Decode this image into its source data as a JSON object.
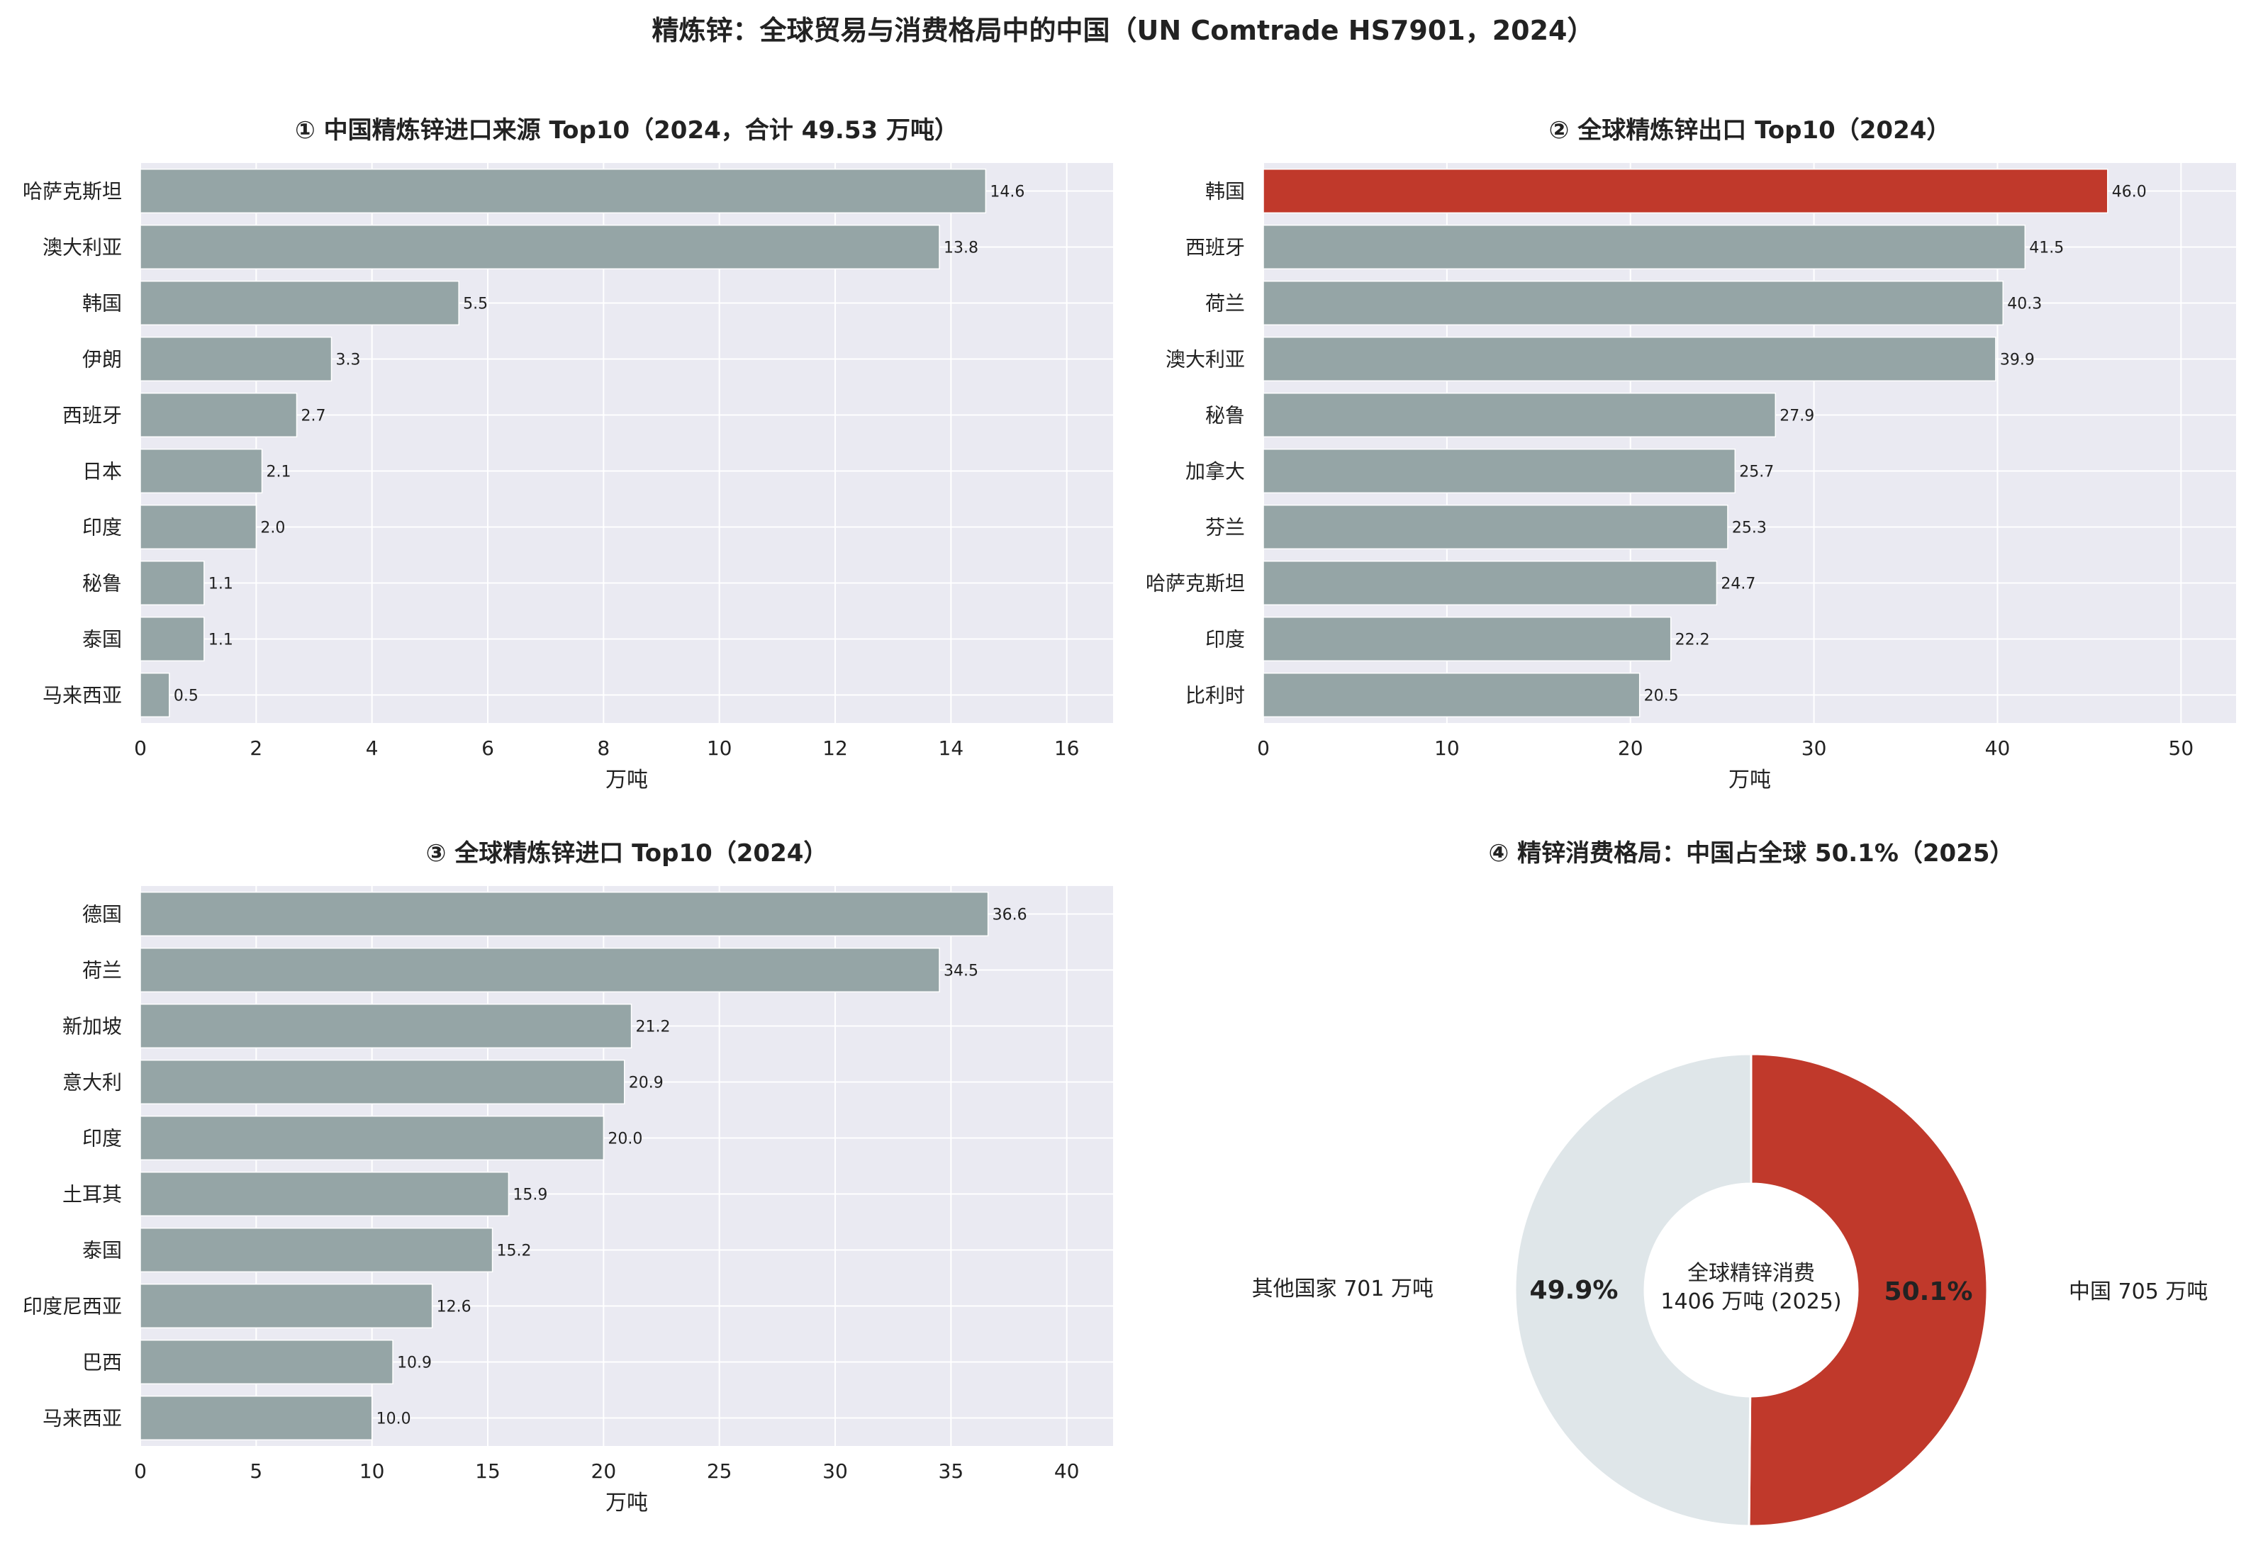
{
  "suptitle": "精炼锌：全球贸易与消费格局中的中国（UN Comtrade HS7901，2024）",
  "colors": {
    "bar": "#95a5a6",
    "highlight": "#c0392b",
    "plot_bg": "#eaeaf2",
    "grid": "#ffffff",
    "other_slice": "#dfe6e9"
  },
  "chart_data": [
    {
      "type": "bar",
      "orientation": "horizontal",
      "title": "① 中国精炼锌进口来源 Top10（2024，合计 49.53 万吨）",
      "xlabel": "万吨",
      "xlim": [
        0,
        16.8
      ],
      "xticks": [
        0,
        2,
        4,
        6,
        8,
        10,
        12,
        14,
        16
      ],
      "categories": [
        "哈萨克斯坦",
        "澳大利亚",
        "韩国",
        "伊朗",
        "西班牙",
        "日本",
        "印度",
        "秘鲁",
        "泰国",
        "马来西亚"
      ],
      "values": [
        14.6,
        13.8,
        5.5,
        3.3,
        2.7,
        2.1,
        2.0,
        1.1,
        1.1,
        0.5
      ],
      "labels": [
        "14.6",
        "13.8",
        "5.5",
        "3.3",
        "2.7",
        "2.1",
        "2.0",
        "1.1",
        "1.1",
        "0.5"
      ],
      "highlight": ""
    },
    {
      "type": "bar",
      "orientation": "horizontal",
      "title": "② 全球精炼锌出口 Top10（2024）",
      "xlabel": "万吨",
      "xlim": [
        0,
        53
      ],
      "xticks": [
        0,
        10,
        20,
        30,
        40,
        50
      ],
      "categories": [
        "韩国",
        "西班牙",
        "荷兰",
        "澳大利亚",
        "秘鲁",
        "加拿大",
        "芬兰",
        "哈萨克斯坦",
        "印度",
        "比利时"
      ],
      "values": [
        46.0,
        41.5,
        40.3,
        39.9,
        27.9,
        25.7,
        25.3,
        24.7,
        22.2,
        20.5
      ],
      "labels": [
        "46.0",
        "41.5",
        "40.3",
        "39.9",
        "27.9",
        "25.7",
        "25.3",
        "24.7",
        "22.2",
        "20.5"
      ],
      "highlight": "韩国"
    },
    {
      "type": "bar",
      "orientation": "horizontal",
      "title": "③ 全球精炼锌进口 Top10（2024）",
      "xlabel": "万吨",
      "xlim": [
        0,
        42
      ],
      "xticks": [
        0,
        5,
        10,
        15,
        20,
        25,
        30,
        35,
        40
      ],
      "categories": [
        "德国",
        "荷兰",
        "新加坡",
        "意大利",
        "印度",
        "土耳其",
        "泰国",
        "印度尼西亚",
        "巴西",
        "马来西亚"
      ],
      "values": [
        36.6,
        34.5,
        21.2,
        20.9,
        20.0,
        15.9,
        15.2,
        12.6,
        10.9,
        10.0
      ],
      "labels": [
        "36.6",
        "34.5",
        "21.2",
        "20.9",
        "20.0",
        "15.9",
        "15.2",
        "12.6",
        "10.9",
        "10.0"
      ],
      "highlight": ""
    },
    {
      "type": "pie",
      "donut": true,
      "title": "④ 精锌消费格局：中国占全球 50.1%（2025）",
      "center_text": [
        "全球精锌消费",
        "1406 万吨 (2025)"
      ],
      "slices": [
        {
          "name": "中国 705 万吨",
          "value": 705,
          "pct": "50.1%",
          "color": "#c0392b"
        },
        {
          "name": "其他国家 701 万吨",
          "value": 701,
          "pct": "49.9%",
          "color": "#dfe6e9"
        }
      ]
    }
  ]
}
